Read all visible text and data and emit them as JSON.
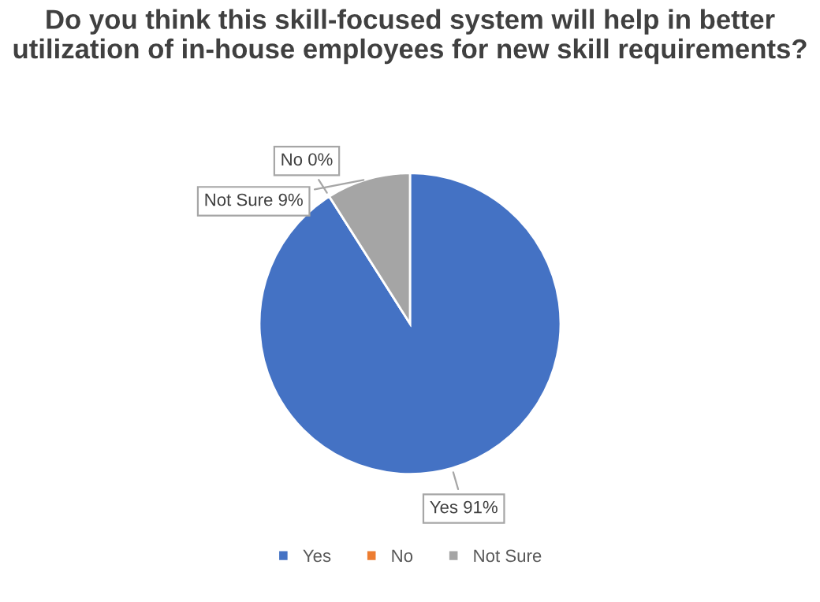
{
  "chart_data": {
    "type": "pie",
    "title": "Do you think this skill-focused system will help in better utilization of in-house employees for new skill requirements?",
    "categories": [
      "Yes",
      "No",
      "Not Sure"
    ],
    "values": [
      91,
      0,
      9
    ],
    "colors": [
      "#4472c4",
      "#ed7d31",
      "#a5a5a5"
    ],
    "value_labels": [
      "Yes 91%",
      "No 0%",
      "Not Sure 9%"
    ],
    "legend": "bottom"
  }
}
